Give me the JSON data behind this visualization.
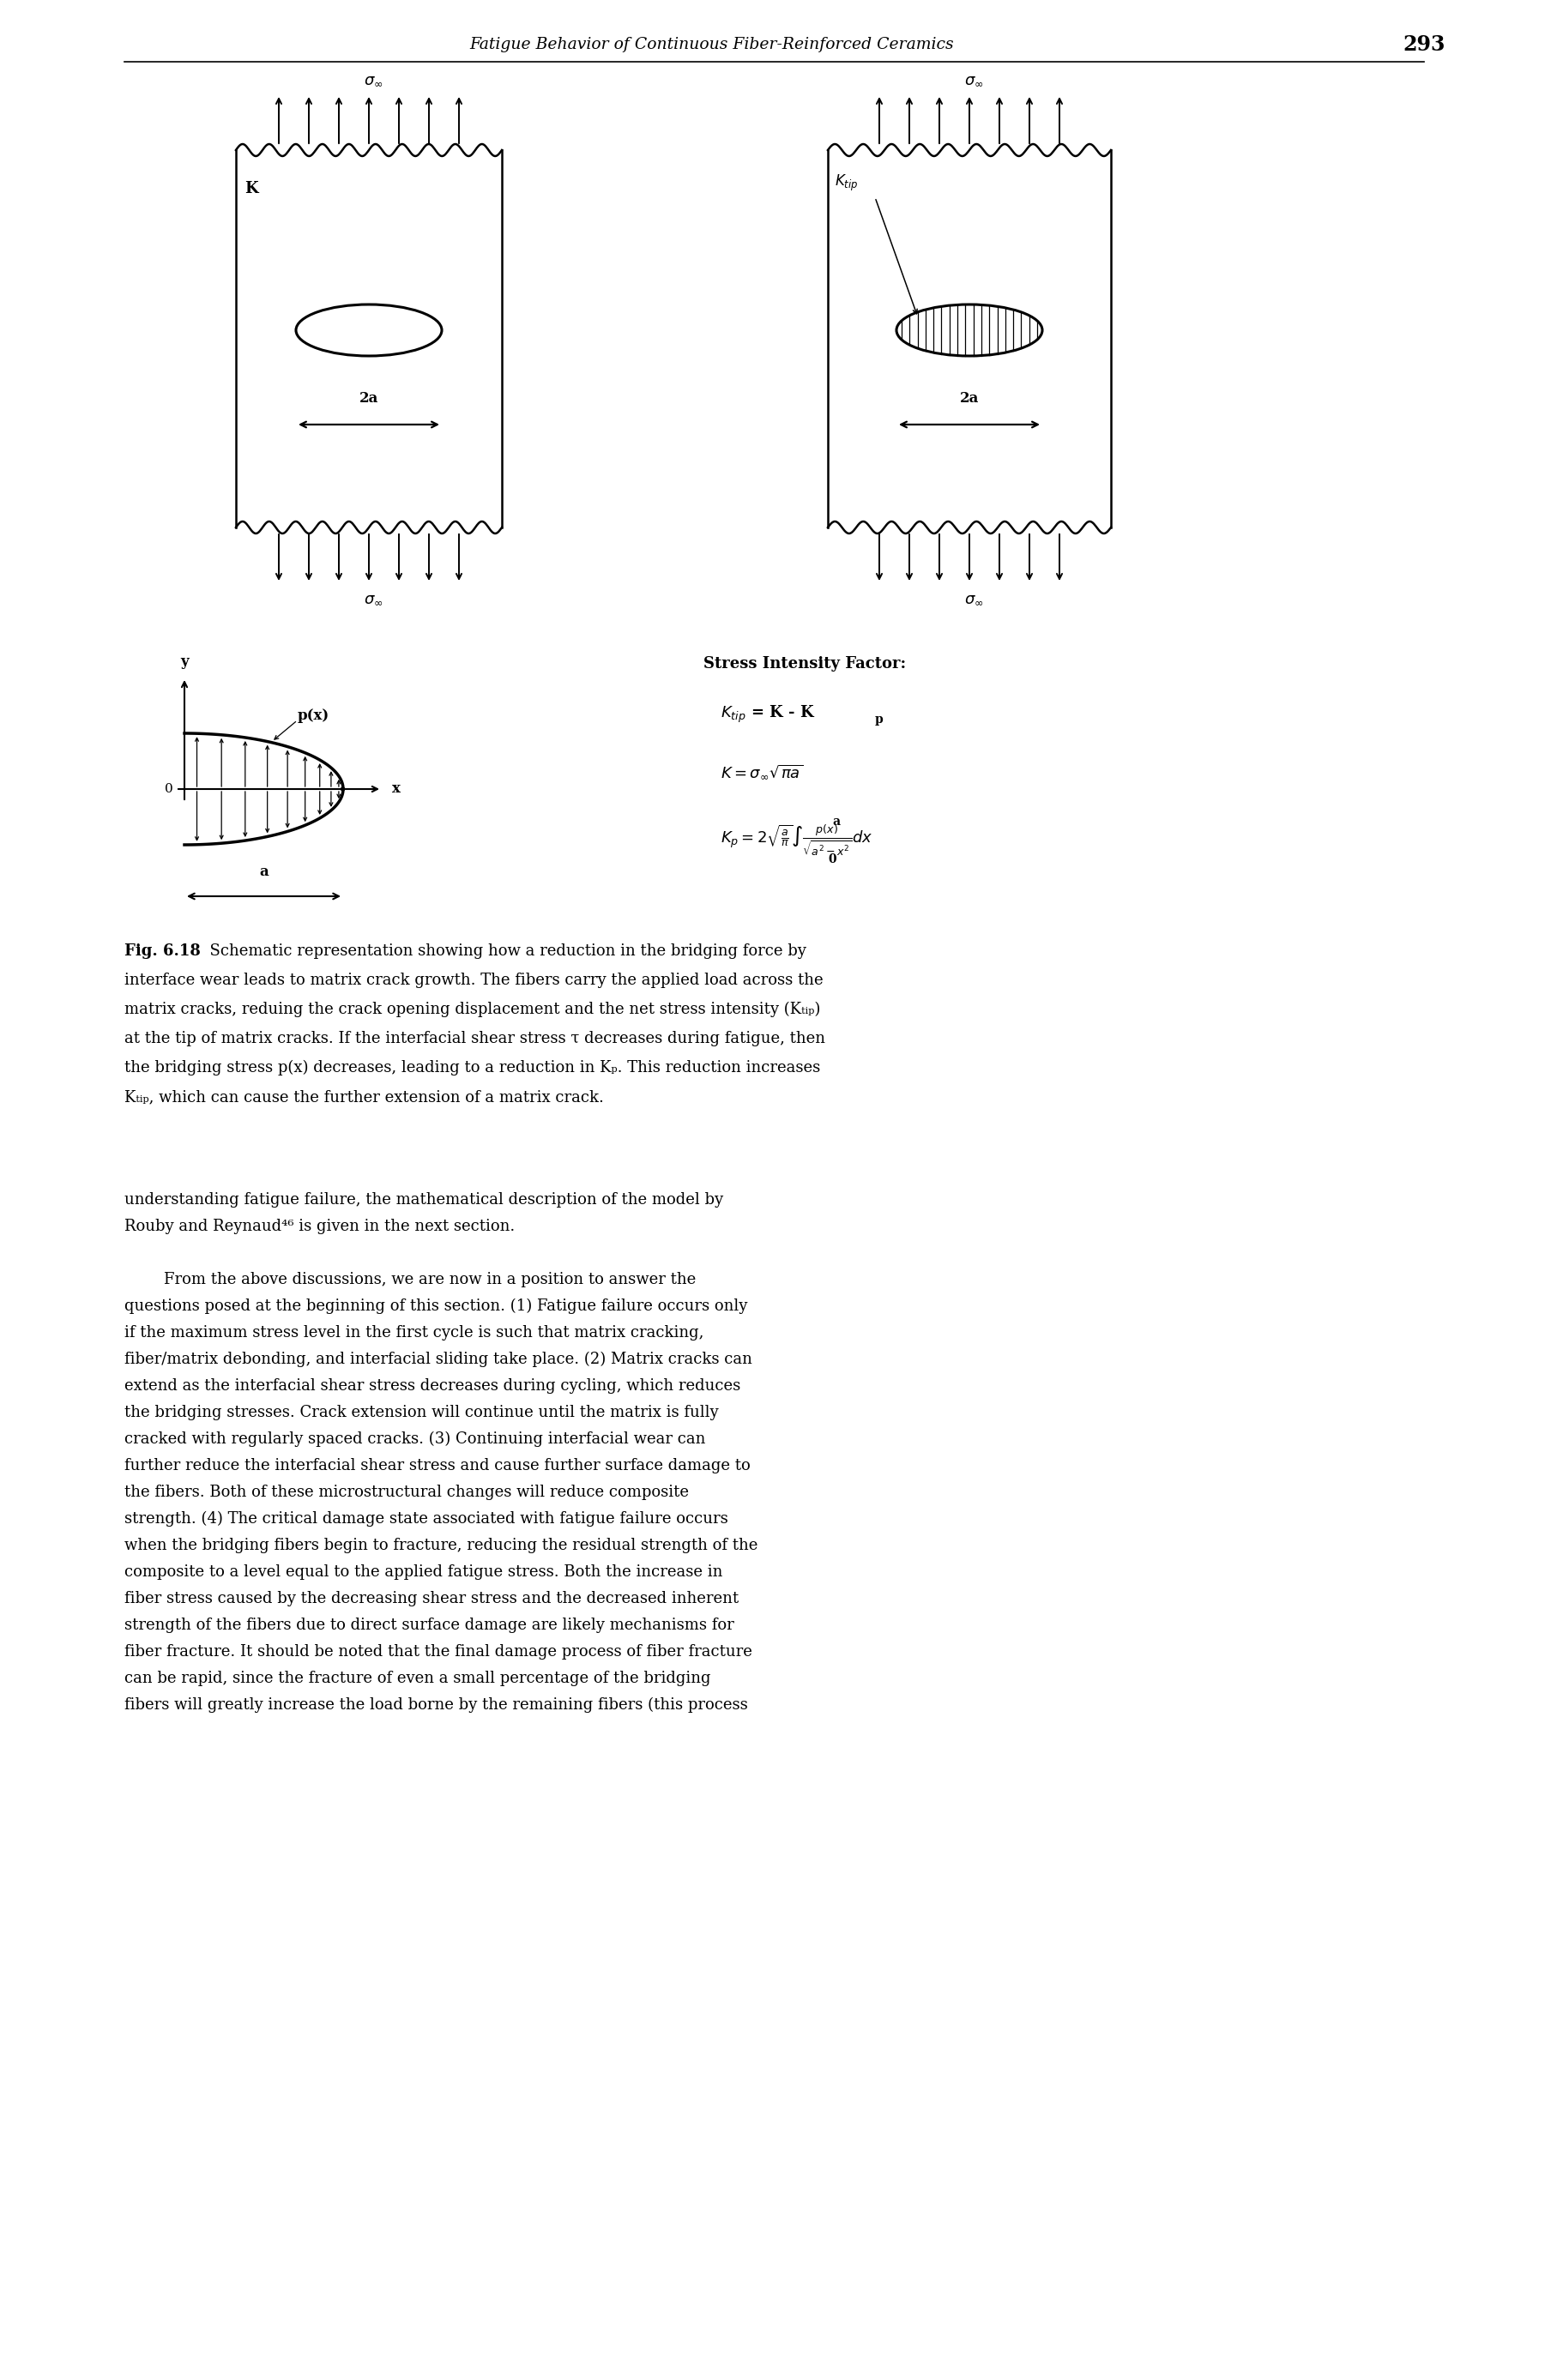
{
  "header_italic": "Fatigue Behavior of Continuous Fiber-Reinforced Ceramics",
  "page_number": "293",
  "background_color": "#ffffff",
  "fig_label": "Fig. 6.18",
  "caption_lines": [
    "  Schematic representation showing how a reduction in the bridging force by",
    "interface wear leads to matrix crack growth. The fibers carry the applied load across the",
    "matrix cracks, reduing the crack opening displacement and the net stress intensity (K_{tip})",
    "at the tip of matrix cracks. If the interfacial shear stress t decreases during fatigue, then",
    "the bridging stress p(x) decreases, leading to a reduction in K_p. This reduction increases",
    "K_{tip}, which can cause the further extension of a matrix crack."
  ],
  "body_lines": [
    "understanding fatigue failure, the mathematical description of the model by",
    "Rouby and Reynaud⁴⁶ is given in the next section.",
    "",
    "        From the above discussions, we are now in a position to answer the",
    "questions posed at the beginning of this section. (1) Fatigue failure occurs only",
    "if the maximum stress level in the first cycle is such that matrix cracking,",
    "fiber/matrix debonding, and interfacial sliding take place. (2) Matrix cracks can",
    "extend as the interfacial shear stress decreases during cycling, which reduces",
    "the bridging stresses. Crack extension will continue until the matrix is fully",
    "cracked with regularly spaced cracks. (3) Continuing interfacial wear can",
    "further reduce the interfacial shear stress and cause further surface damage to",
    "the fibers. Both of these microstructural changes will reduce composite",
    "strength. (4) The critical damage state associated with fatigue failure occurs",
    "when the bridging fibers begin to fracture, reducing the residual strength of the",
    "composite to a level equal to the applied fatigue stress. Both the increase in",
    "fiber stress caused by the decreasing shear stress and the decreased inherent",
    "strength of the fibers due to direct surface damage are likely mechanisms for",
    "fiber fracture. It should be noted that the final damage process of fiber fracture",
    "can be rapid, since the fracture of even a small percentage of the bridging",
    "fibers will greatly increase the load borne by the remaining fibers (this process"
  ]
}
